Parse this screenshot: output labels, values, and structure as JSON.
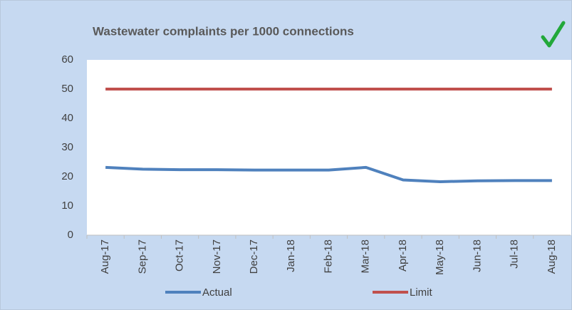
{
  "chart_data": {
    "type": "line",
    "title": "Wastewater complaints per 1000 connections",
    "categories": [
      "Aug-17",
      "Sep-17",
      "Oct-17",
      "Nov-17",
      "Dec-17",
      "Jan-18",
      "Feb-18",
      "Mar-18",
      "Apr-18",
      "May-18",
      "Jun-18",
      "Jul-18",
      "Aug-18"
    ],
    "series": [
      {
        "name": "Actual",
        "color": "#4f81bd",
        "values": [
          23.2,
          22.6,
          22.4,
          22.4,
          22.3,
          22.3,
          22.3,
          23.2,
          18.9,
          18.3,
          18.6,
          18.7,
          18.7
        ]
      },
      {
        "name": "Limit",
        "color": "#c0504d",
        "values": [
          50,
          50,
          50,
          50,
          50,
          50,
          50,
          50,
          50,
          50,
          50,
          50,
          50
        ]
      }
    ],
    "ylim": [
      0,
      60
    ],
    "yticks": [
      0,
      10,
      20,
      30,
      40,
      50,
      60
    ],
    "grid": false
  }
}
